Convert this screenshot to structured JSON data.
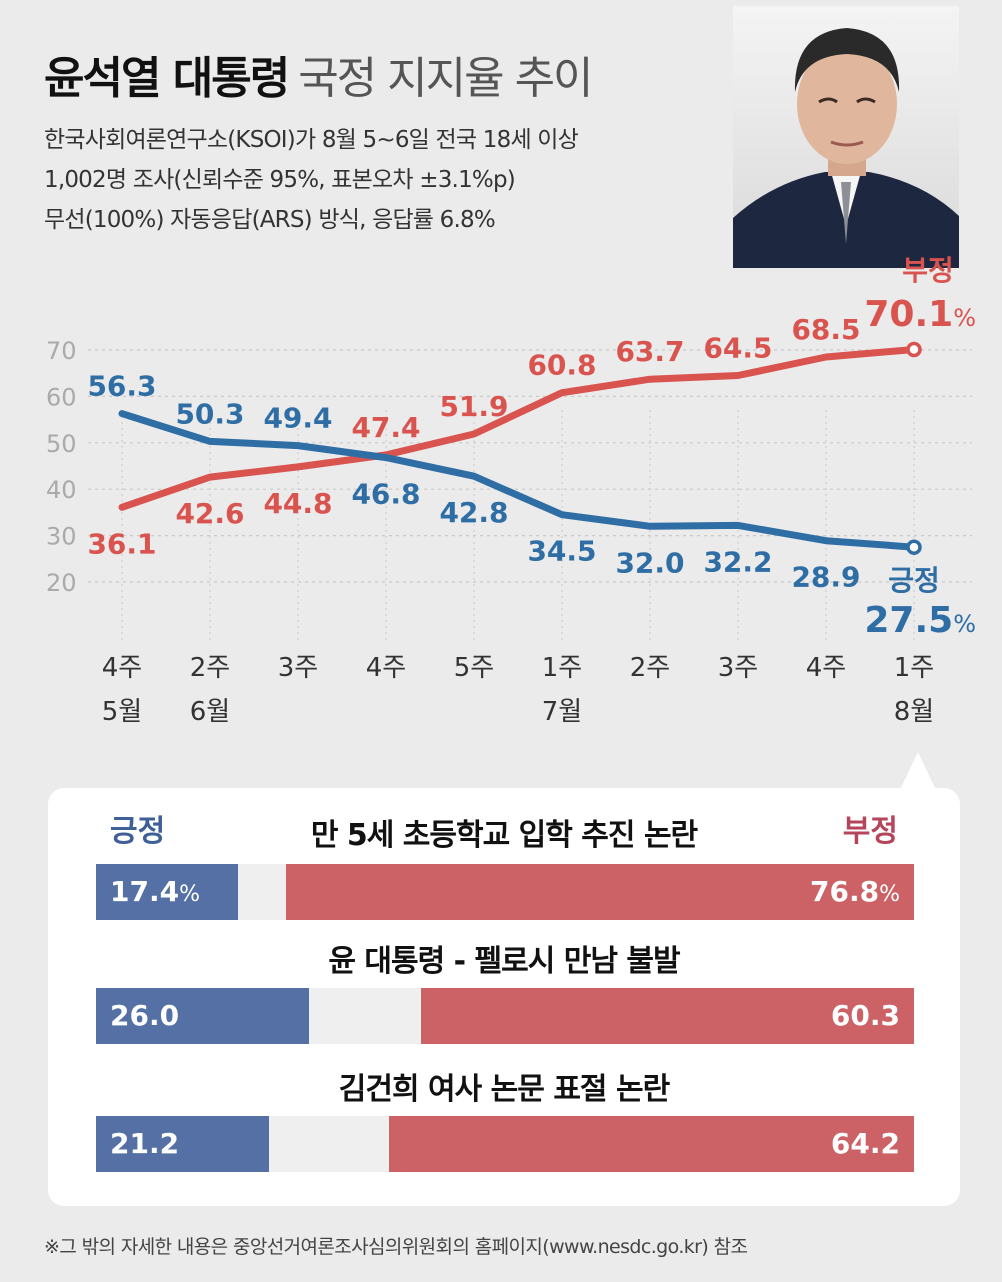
{
  "header": {
    "title_bold": "윤석열 대통령",
    "title_light": "국정 지지율 추이",
    "desc_lines": [
      "한국사회여론연구소(KSOI)가 8월 5~6일 전국 18세 이상",
      "1,002명 조사(신뢰수준 95%, 표본오차 ±3.1%p)",
      "무선(100%) 자동응답(ARS) 방식, 응답률 6.8%"
    ]
  },
  "colors": {
    "positive": "#2f6ea5",
    "negative": "#d9534f",
    "positive_bar": "#5470a5",
    "negative_bar": "#cc6266"
  },
  "chart_data": {
    "type": "line",
    "title": "윤석열 대통령 국정 지지율 추이",
    "xlabel": "",
    "ylabel": "",
    "ylim": [
      20,
      70
    ],
    "yticks": [
      "70",
      "60",
      "50",
      "40",
      "30",
      "20"
    ],
    "categories": [
      {
        "week": "4주",
        "month": "5월"
      },
      {
        "week": "2주",
        "month": "6월"
      },
      {
        "week": "3주",
        "month": ""
      },
      {
        "week": "4주",
        "month": ""
      },
      {
        "week": "5주",
        "month": ""
      },
      {
        "week": "1주",
        "month": "7월"
      },
      {
        "week": "2주",
        "month": ""
      },
      {
        "week": "3주",
        "month": ""
      },
      {
        "week": "4주",
        "month": ""
      },
      {
        "week": "1주",
        "month": "8월"
      }
    ],
    "series": [
      {
        "name": "긍정",
        "values": [
          56.3,
          50.3,
          49.4,
          46.8,
          42.8,
          34.5,
          32.0,
          32.2,
          28.9,
          27.5
        ],
        "labels": [
          "56.3",
          "50.3",
          "49.4",
          "46.8",
          "42.8",
          "34.5",
          "32.0",
          "32.2",
          "28.9",
          "27.5"
        ],
        "last_label": "27.5",
        "unit": "%"
      },
      {
        "name": "부정",
        "values": [
          36.1,
          42.6,
          44.8,
          47.4,
          51.9,
          60.8,
          63.7,
          64.5,
          68.5,
          70.1
        ],
        "labels": [
          "36.1",
          "42.6",
          "44.8",
          "47.4",
          "51.9",
          "60.8",
          "63.7",
          "64.5",
          "68.5",
          "70.1"
        ],
        "last_label": "70.1",
        "unit": "%"
      }
    ]
  },
  "issues": {
    "legend_positive": "긍정",
    "legend_negative": "부정",
    "items": [
      {
        "title": "만 5세 초등학교 입학 추진 논란",
        "positive": 17.4,
        "negative": 76.8,
        "positive_label": "17.4",
        "negative_label": "76.8",
        "show_percent": true
      },
      {
        "title": "윤 대통령 - 펠로시 만남 불발",
        "positive": 26.0,
        "negative": 60.3,
        "positive_label": "26.0",
        "negative_label": "60.3",
        "show_percent": false
      },
      {
        "title": "김건희 여사 논문 표절 논란",
        "positive": 21.2,
        "negative": 64.2,
        "positive_label": "21.2",
        "negative_label": "64.2",
        "show_percent": false
      }
    ]
  },
  "footnote": "※그 밖의 자세한 내용은 중앙선거여론조사심의위원회의 홈페이지(www.nesdc.go.kr) 참조"
}
